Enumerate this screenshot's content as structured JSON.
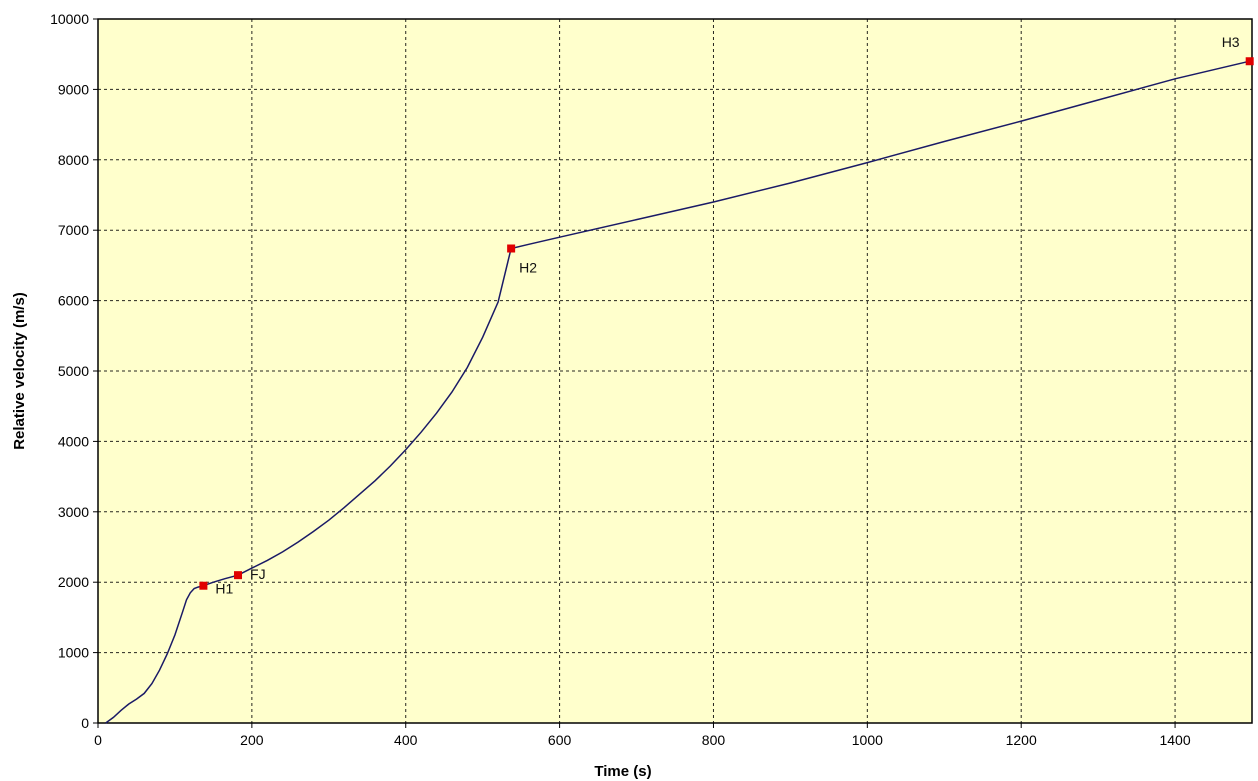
{
  "chart_data": {
    "type": "line",
    "title": "",
    "xlabel": "Time (s)",
    "ylabel": "Relative velocity (m/s)",
    "xlim": [
      0,
      1500
    ],
    "ylim": [
      0,
      10000
    ],
    "x_ticks": [
      0,
      200,
      400,
      600,
      800,
      1000,
      1200,
      1400
    ],
    "y_ticks": [
      0,
      1000,
      2000,
      3000,
      4000,
      5000,
      6000,
      7000,
      8000,
      9000,
      10000
    ],
    "grid": true,
    "background_color": "#ffffcc",
    "line_color": "#1a1a66",
    "marker_color": "#e00000",
    "series": [
      {
        "x": [
          10,
          20,
          30,
          40,
          50,
          60,
          70,
          80,
          90,
          100,
          110,
          115,
          120,
          125,
          130,
          137,
          150,
          165,
          182,
          200,
          220,
          240,
          260,
          280,
          300,
          320,
          340,
          360,
          380,
          400,
          420,
          440,
          460,
          480,
          500,
          520,
          537,
          560,
          600,
          700,
          800,
          900,
          1000,
          1100,
          1200,
          1300,
          1400,
          1497
        ],
        "y": [
          0,
          80,
          180,
          270,
          340,
          420,
          560,
          750,
          980,
          1250,
          1580,
          1750,
          1850,
          1910,
          1930,
          1950,
          2000,
          2050,
          2100,
          2200,
          2310,
          2430,
          2570,
          2720,
          2880,
          3060,
          3250,
          3440,
          3650,
          3880,
          4130,
          4400,
          4700,
          5050,
          5480,
          5980,
          6740,
          6800,
          6900,
          7150,
          7400,
          7670,
          7960,
          8260,
          8550,
          8850,
          9150,
          9400
        ]
      }
    ],
    "points": [
      {
        "label": "H1",
        "x": 137,
        "y": 1950
      },
      {
        "label": "FJ",
        "x": 182,
        "y": 2100
      },
      {
        "label": "H2",
        "x": 537,
        "y": 6740
      },
      {
        "label": "H3",
        "x": 1497,
        "y": 9400
      }
    ]
  }
}
